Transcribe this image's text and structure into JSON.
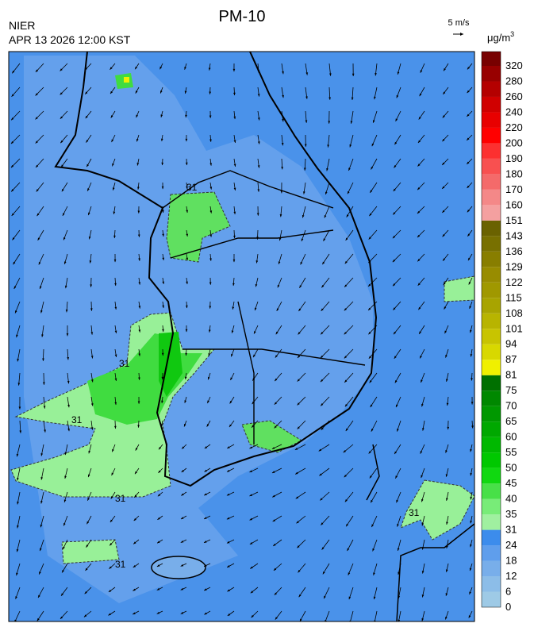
{
  "header": {
    "agency": "NIER",
    "datetime": "APR 13 2026 12:00 KST",
    "title": "PM-10",
    "wind_scale": "5 m/s",
    "unit": "μg/m",
    "unit_superscript": "3"
  },
  "colorbar": {
    "levels": [
      0,
      6,
      12,
      18,
      24,
      31,
      35,
      40,
      45,
      50,
      55,
      60,
      65,
      70,
      75,
      81,
      87,
      94,
      101,
      108,
      115,
      122,
      129,
      136,
      143,
      151,
      160,
      170,
      180,
      190,
      200,
      220,
      240,
      260,
      280,
      320
    ],
    "colors": [
      "#9ecae6",
      "#8cbde8",
      "#78aeea",
      "#5f9eec",
      "#3c8cec",
      "#a0f0a0",
      "#78ec78",
      "#48e048",
      "#10d810",
      "#00c800",
      "#00b800",
      "#00a800",
      "#009800",
      "#008800",
      "#007000",
      "#f0f000",
      "#d8d800",
      "#c8c400",
      "#b8b400",
      "#a8a400",
      "#a09800",
      "#988c00",
      "#887e00",
      "#787000",
      "#6a6200",
      "#f4a0a0",
      "#f48888",
      "#f46a6a",
      "#f85050",
      "#fc3030",
      "#ff0000",
      "#e80000",
      "#d00000",
      "#b40000",
      "#980000",
      "#780000"
    ]
  },
  "contour_labels": [
    "31",
    "31",
    "31",
    "31",
    "31",
    "31"
  ]
}
